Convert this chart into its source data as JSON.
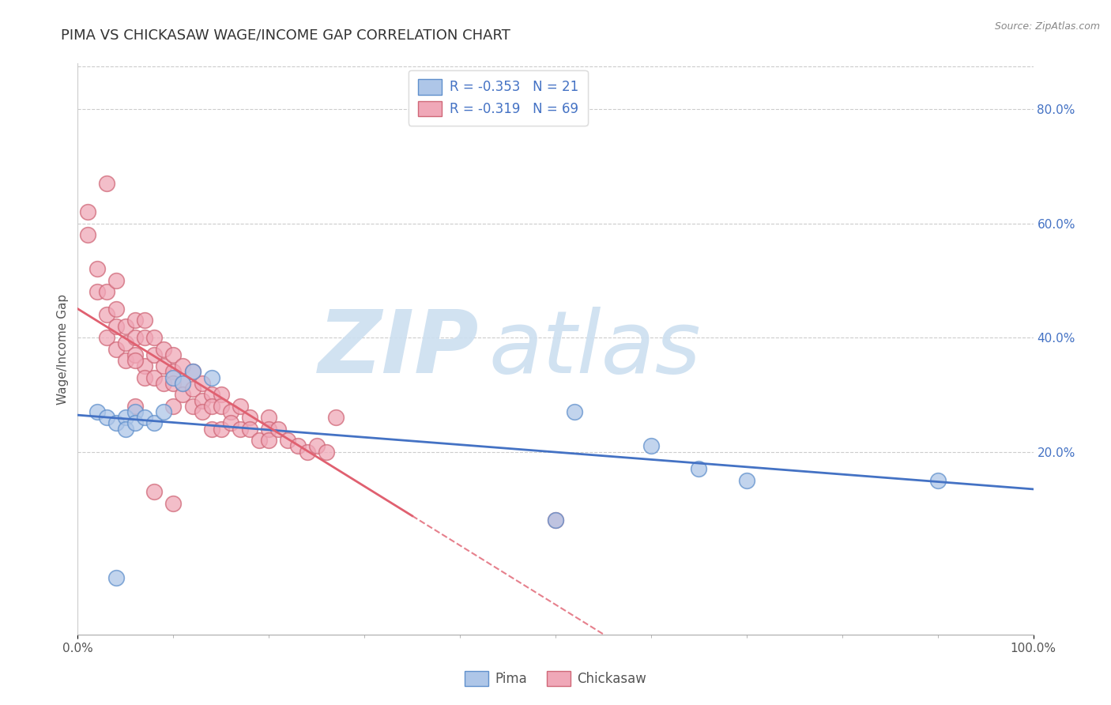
{
  "title": "PIMA VS CHICKASAW WAGE/INCOME GAP CORRELATION CHART",
  "source": "Source: ZipAtlas.com",
  "ylabel": "Wage/Income Gap",
  "xlim": [
    0.0,
    1.0
  ],
  "ylim": [
    -0.12,
    0.88
  ],
  "x_tick_positions": [
    0.0,
    1.0
  ],
  "x_tick_labels": [
    "0.0%",
    "100.0%"
  ],
  "right_y_ticks": [
    0.2,
    0.4,
    0.6,
    0.8
  ],
  "right_y_tick_labels": [
    "20.0%",
    "40.0%",
    "60.0%",
    "80.0%"
  ],
  "grid_color": "#cccccc",
  "background_color": "#ffffff",
  "title_color": "#333333",
  "title_fontsize": 13,
  "axis_label_color": "#555555",
  "tick_label_color": "#555555",
  "right_tick_color": "#4472c4",
  "pima_color": "#aec6e8",
  "pima_edge_color": "#6090cc",
  "chickasaw_color": "#f0a8b8",
  "chickasaw_edge_color": "#d06878",
  "pima_line_color": "#4472c4",
  "chickasaw_line_color": "#e06070",
  "legend_label_pima": "Pima",
  "legend_label_chickasaw": "Chickasaw",
  "pima_R": "-0.353",
  "pima_N": "21",
  "chickasaw_R": "-0.319",
  "chickasaw_N": "69",
  "pima_x": [
    0.02,
    0.03,
    0.04,
    0.05,
    0.05,
    0.06,
    0.06,
    0.07,
    0.08,
    0.09,
    0.1,
    0.11,
    0.12,
    0.14,
    0.5,
    0.52,
    0.6,
    0.65,
    0.7,
    0.9,
    0.04
  ],
  "pima_y": [
    0.27,
    0.26,
    0.25,
    0.26,
    0.24,
    0.27,
    0.25,
    0.26,
    0.25,
    0.27,
    0.33,
    0.32,
    0.34,
    0.33,
    0.08,
    0.27,
    0.21,
    0.17,
    0.15,
    0.15,
    -0.02
  ],
  "chickasaw_x": [
    0.01,
    0.01,
    0.02,
    0.02,
    0.03,
    0.03,
    0.03,
    0.04,
    0.04,
    0.04,
    0.05,
    0.05,
    0.05,
    0.06,
    0.06,
    0.06,
    0.07,
    0.07,
    0.07,
    0.07,
    0.08,
    0.08,
    0.08,
    0.09,
    0.09,
    0.09,
    0.1,
    0.1,
    0.1,
    0.1,
    0.11,
    0.11,
    0.11,
    0.12,
    0.12,
    0.12,
    0.13,
    0.13,
    0.13,
    0.14,
    0.14,
    0.14,
    0.15,
    0.15,
    0.15,
    0.16,
    0.16,
    0.17,
    0.17,
    0.18,
    0.18,
    0.19,
    0.2,
    0.2,
    0.2,
    0.21,
    0.22,
    0.23,
    0.24,
    0.25,
    0.26,
    0.27,
    0.5,
    0.03,
    0.04,
    0.06,
    0.06,
    0.08,
    0.1
  ],
  "chickasaw_y": [
    0.62,
    0.58,
    0.52,
    0.48,
    0.48,
    0.44,
    0.4,
    0.45,
    0.42,
    0.38,
    0.42,
    0.39,
    0.36,
    0.43,
    0.4,
    0.37,
    0.43,
    0.4,
    0.35,
    0.33,
    0.4,
    0.37,
    0.33,
    0.38,
    0.35,
    0.32,
    0.37,
    0.34,
    0.32,
    0.28,
    0.35,
    0.32,
    0.3,
    0.34,
    0.31,
    0.28,
    0.32,
    0.29,
    0.27,
    0.3,
    0.28,
    0.24,
    0.3,
    0.28,
    0.24,
    0.27,
    0.25,
    0.28,
    0.24,
    0.26,
    0.24,
    0.22,
    0.26,
    0.24,
    0.22,
    0.24,
    0.22,
    0.21,
    0.2,
    0.21,
    0.2,
    0.26,
    0.08,
    0.67,
    0.5,
    0.36,
    0.28,
    0.13,
    0.11
  ],
  "watermark_zip_color": "#ccdff0",
  "watermark_atlas_color": "#ccdff0"
}
